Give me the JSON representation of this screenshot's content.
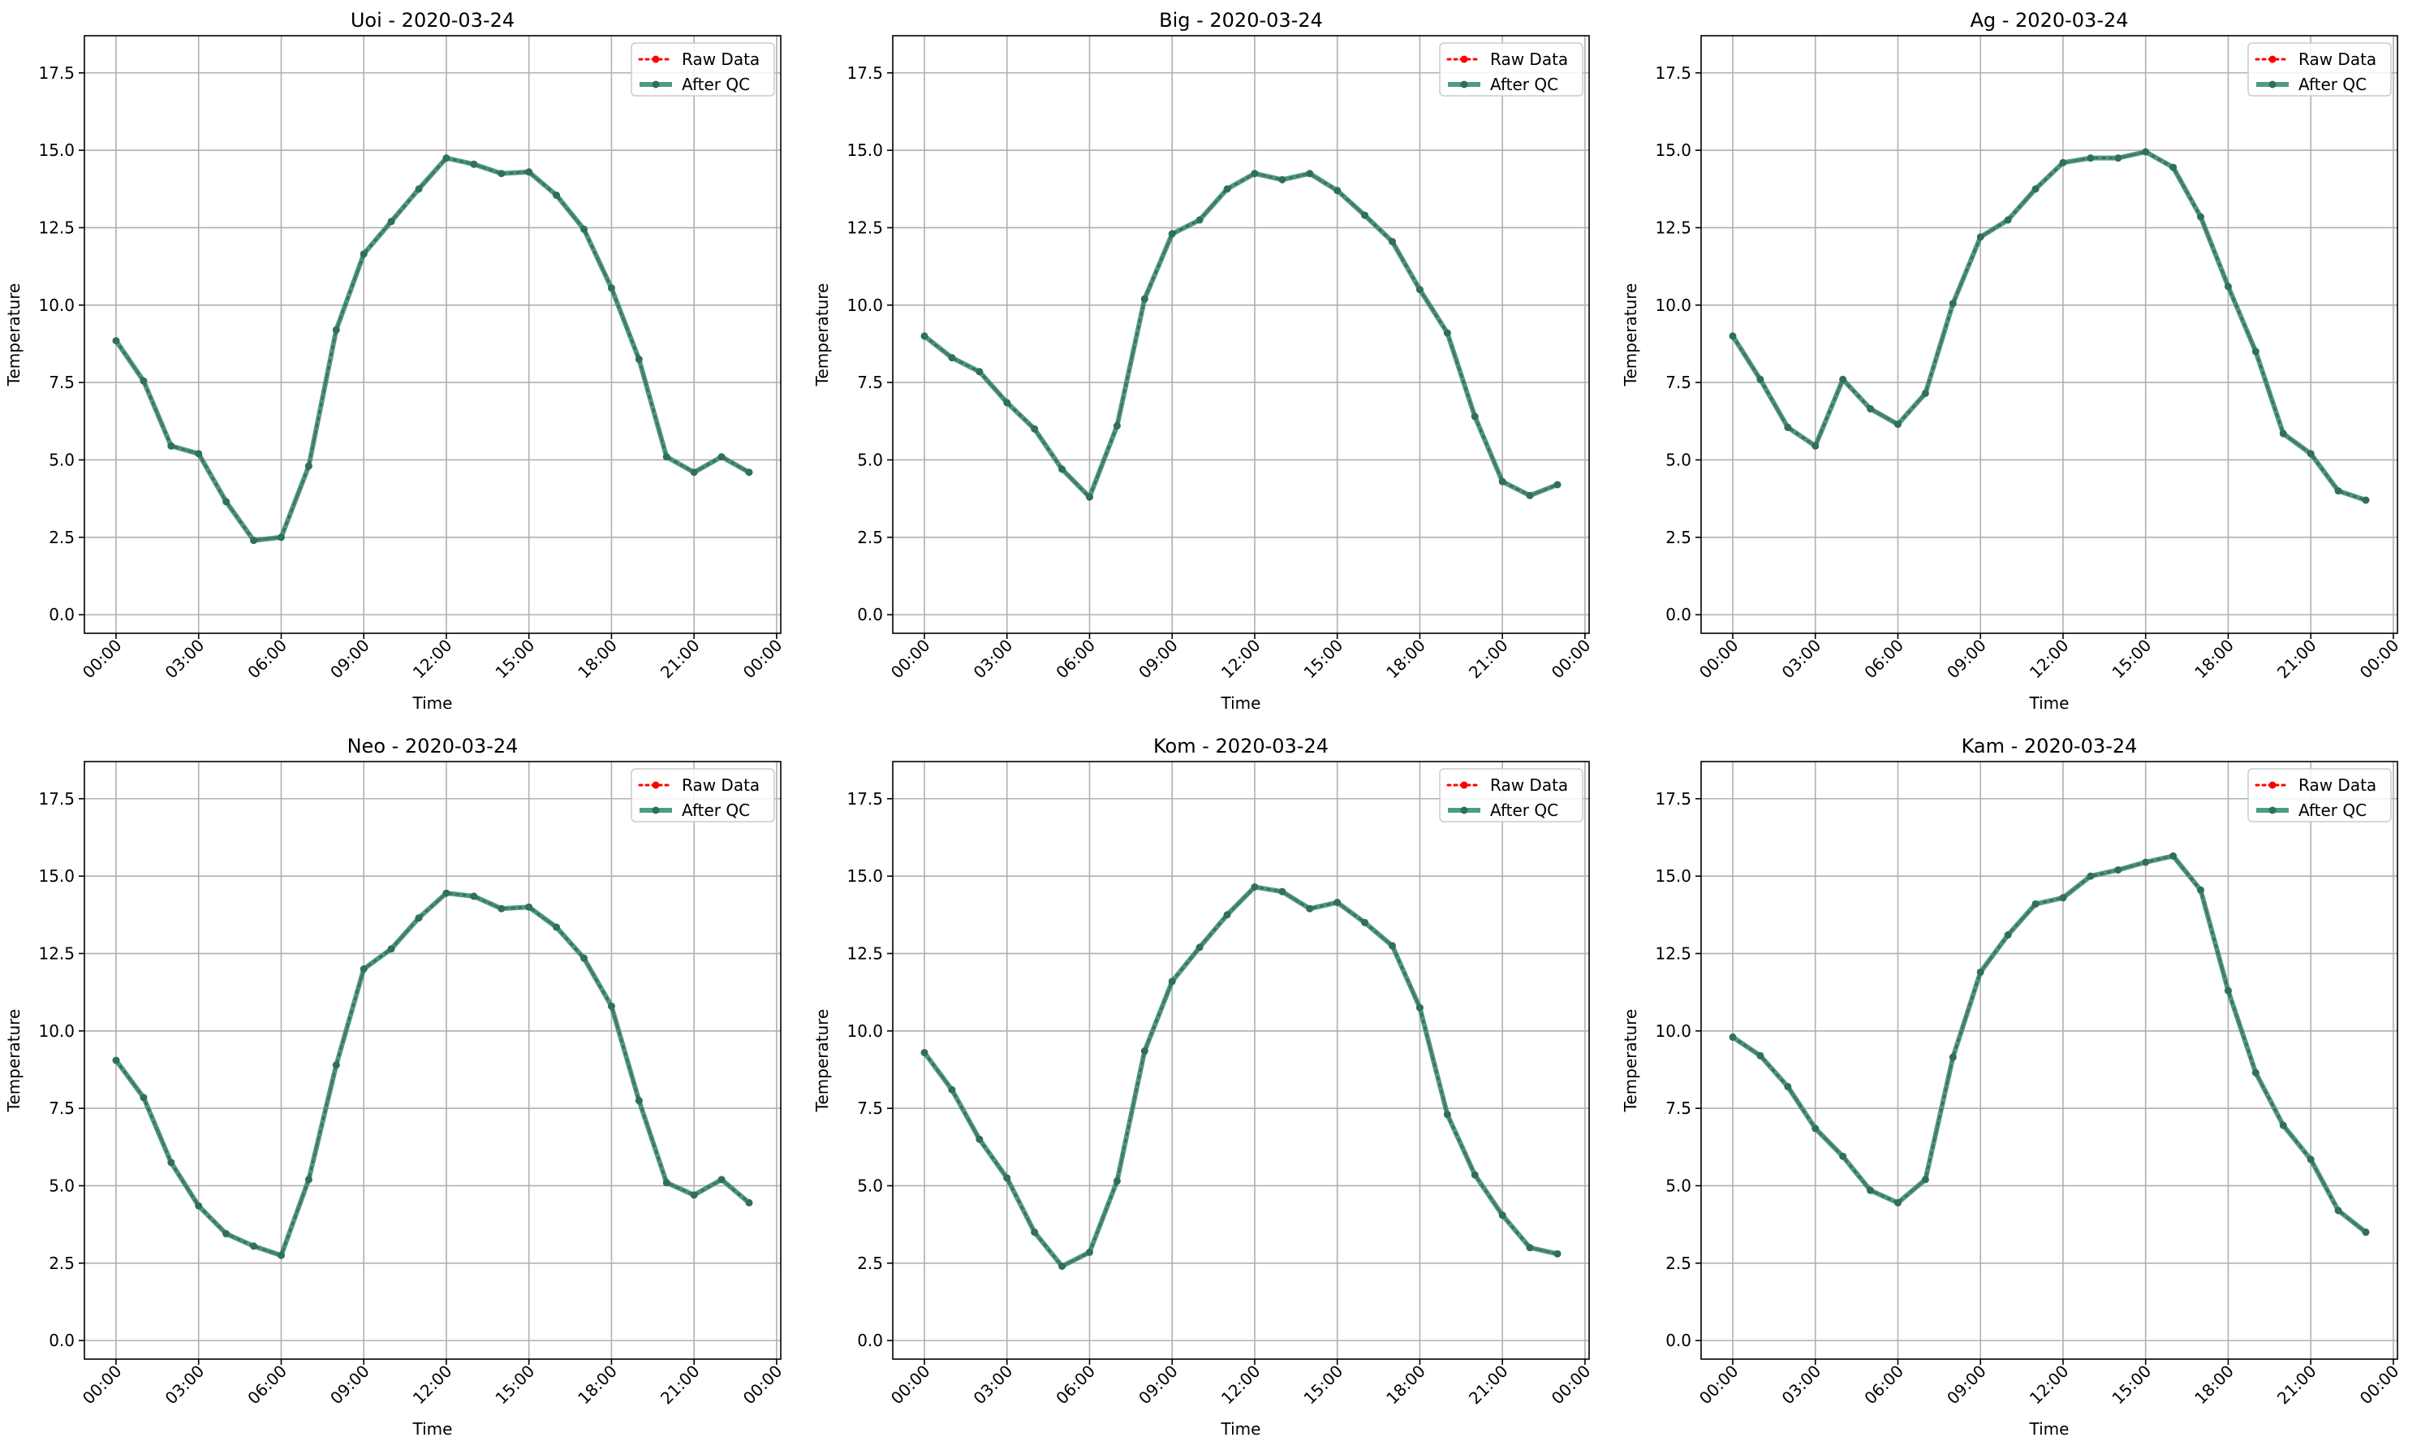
{
  "chart_data": [
    {
      "type": "line",
      "title": "Uoi - 2020-03-24",
      "xlabel": "Time",
      "ylabel": "Temperature",
      "x_ticks": [
        "00:00",
        "03:00",
        "06:00",
        "09:00",
        "12:00",
        "15:00",
        "18:00",
        "21:00",
        "00:00"
      ],
      "y_ticks": [
        "0.0",
        "2.5",
        "5.0",
        "7.5",
        "10.0",
        "12.5",
        "15.0",
        "17.5"
      ],
      "ylim": [
        -0.6,
        18.7
      ],
      "grid": true,
      "legend_position": "top-right",
      "x_hours": [
        0,
        1,
        2,
        3,
        4,
        5,
        6,
        7,
        8,
        9,
        10,
        11,
        12,
        13,
        14,
        15,
        16,
        17,
        18,
        19,
        20,
        21,
        22,
        23
      ],
      "series": [
        {
          "name": "Raw Data",
          "values": [
            8.85,
            7.55,
            5.45,
            5.2,
            3.65,
            2.4,
            2.5,
            4.8,
            9.2,
            11.65,
            12.7,
            13.75,
            14.75,
            14.55,
            14.25,
            14.3,
            13.55,
            12.45,
            10.55,
            8.25,
            5.1,
            4.6,
            5.1,
            4.6
          ]
        },
        {
          "name": "After QC",
          "values": [
            8.85,
            7.55,
            5.45,
            5.2,
            3.65,
            2.4,
            2.5,
            4.8,
            9.2,
            11.65,
            12.7,
            13.75,
            14.75,
            14.55,
            14.25,
            14.3,
            13.55,
            12.45,
            10.55,
            8.25,
            5.1,
            4.6,
            5.1,
            4.6
          ]
        }
      ]
    },
    {
      "type": "line",
      "title": "Big - 2020-03-24",
      "xlabel": "Time",
      "ylabel": "Temperature",
      "x_ticks": [
        "00:00",
        "03:00",
        "06:00",
        "09:00",
        "12:00",
        "15:00",
        "18:00",
        "21:00",
        "00:00"
      ],
      "y_ticks": [
        "0.0",
        "2.5",
        "5.0",
        "7.5",
        "10.0",
        "12.5",
        "15.0",
        "17.5"
      ],
      "ylim": [
        -0.6,
        18.7
      ],
      "grid": true,
      "legend_position": "top-right",
      "x_hours": [
        0,
        1,
        2,
        3,
        4,
        5,
        6,
        7,
        8,
        9,
        10,
        11,
        12,
        13,
        14,
        15,
        16,
        17,
        18,
        19,
        20,
        21,
        22,
        23
      ],
      "series": [
        {
          "name": "Raw Data",
          "values": [
            9.0,
            8.3,
            7.85,
            6.85,
            6.0,
            4.7,
            3.8,
            6.1,
            10.2,
            12.3,
            12.75,
            13.75,
            14.25,
            14.05,
            14.25,
            13.7,
            12.9,
            12.05,
            10.5,
            9.1,
            6.4,
            4.3,
            3.85,
            4.2
          ]
        },
        {
          "name": "After QC",
          "values": [
            9.0,
            8.3,
            7.85,
            6.85,
            6.0,
            4.7,
            3.8,
            6.1,
            10.2,
            12.3,
            12.75,
            13.75,
            14.25,
            14.05,
            14.25,
            13.7,
            12.9,
            12.05,
            10.5,
            9.1,
            6.4,
            4.3,
            3.85,
            4.2
          ]
        }
      ]
    },
    {
      "type": "line",
      "title": "Ag - 2020-03-24",
      "xlabel": "Time",
      "ylabel": "Temperature",
      "x_ticks": [
        "00:00",
        "03:00",
        "06:00",
        "09:00",
        "12:00",
        "15:00",
        "18:00",
        "21:00",
        "00:00"
      ],
      "y_ticks": [
        "0.0",
        "2.5",
        "5.0",
        "7.5",
        "10.0",
        "12.5",
        "15.0",
        "17.5"
      ],
      "ylim": [
        -0.6,
        18.7
      ],
      "grid": true,
      "legend_position": "top-right",
      "x_hours": [
        0,
        1,
        2,
        3,
        4,
        5,
        6,
        7,
        8,
        9,
        10,
        11,
        12,
        13,
        14,
        15,
        16,
        17,
        18,
        19,
        20,
        21,
        22,
        23
      ],
      "series": [
        {
          "name": "Raw Data",
          "values": [
            9.0,
            7.6,
            6.05,
            5.45,
            7.6,
            6.65,
            6.15,
            7.15,
            10.05,
            12.2,
            12.75,
            13.75,
            14.6,
            14.75,
            14.75,
            14.95,
            14.45,
            12.85,
            10.6,
            8.5,
            5.85,
            5.2,
            4.0,
            3.7
          ]
        },
        {
          "name": "After QC",
          "values": [
            9.0,
            7.6,
            6.05,
            5.45,
            7.6,
            6.65,
            6.15,
            7.15,
            10.05,
            12.2,
            12.75,
            13.75,
            14.6,
            14.75,
            14.75,
            14.95,
            14.45,
            12.85,
            10.6,
            8.5,
            5.85,
            5.2,
            4.0,
            3.7
          ]
        }
      ]
    },
    {
      "type": "line",
      "title": "Neo - 2020-03-24",
      "xlabel": "Time",
      "ylabel": "Temperature",
      "x_ticks": [
        "00:00",
        "03:00",
        "06:00",
        "09:00",
        "12:00",
        "15:00",
        "18:00",
        "21:00",
        "00:00"
      ],
      "y_ticks": [
        "0.0",
        "2.5",
        "5.0",
        "7.5",
        "10.0",
        "12.5",
        "15.0",
        "17.5"
      ],
      "ylim": [
        -0.6,
        18.7
      ],
      "grid": true,
      "legend_position": "top-right",
      "x_hours": [
        0,
        1,
        2,
        3,
        4,
        5,
        6,
        7,
        8,
        9,
        10,
        11,
        12,
        13,
        14,
        15,
        16,
        17,
        18,
        19,
        20,
        21,
        22,
        23
      ],
      "series": [
        {
          "name": "Raw Data",
          "values": [
            9.05,
            7.85,
            5.75,
            4.35,
            3.45,
            3.05,
            2.75,
            5.2,
            8.9,
            12.0,
            12.65,
            13.65,
            14.45,
            14.35,
            13.95,
            14.0,
            13.35,
            12.35,
            10.8,
            7.75,
            5.1,
            4.7,
            5.2,
            4.45
          ]
        },
        {
          "name": "After QC",
          "values": [
            9.05,
            7.85,
            5.75,
            4.35,
            3.45,
            3.05,
            2.75,
            5.2,
            8.9,
            12.0,
            12.65,
            13.65,
            14.45,
            14.35,
            13.95,
            14.0,
            13.35,
            12.35,
            10.8,
            7.75,
            5.1,
            4.7,
            5.2,
            4.45
          ]
        }
      ]
    },
    {
      "type": "line",
      "title": "Kom - 2020-03-24",
      "xlabel": "Time",
      "ylabel": "Temperature",
      "x_ticks": [
        "00:00",
        "03:00",
        "06:00",
        "09:00",
        "12:00",
        "15:00",
        "18:00",
        "21:00",
        "00:00"
      ],
      "y_ticks": [
        "0.0",
        "2.5",
        "5.0",
        "7.5",
        "10.0",
        "12.5",
        "15.0",
        "17.5"
      ],
      "ylim": [
        -0.6,
        18.7
      ],
      "grid": true,
      "legend_position": "top-right",
      "x_hours": [
        0,
        1,
        2,
        3,
        4,
        5,
        6,
        7,
        8,
        9,
        10,
        11,
        12,
        13,
        14,
        15,
        16,
        17,
        18,
        19,
        20,
        21,
        22,
        23
      ],
      "series": [
        {
          "name": "Raw Data",
          "values": [
            9.3,
            8.1,
            6.5,
            5.25,
            3.5,
            2.4,
            2.85,
            5.15,
            9.35,
            11.6,
            12.7,
            13.75,
            14.65,
            14.5,
            13.95,
            14.15,
            13.5,
            12.75,
            10.75,
            7.3,
            5.35,
            4.05,
            3.0,
            2.8
          ]
        },
        {
          "name": "After QC",
          "values": [
            9.3,
            8.1,
            6.5,
            5.25,
            3.5,
            2.4,
            2.85,
            5.15,
            9.35,
            11.6,
            12.7,
            13.75,
            14.65,
            14.5,
            13.95,
            14.15,
            13.5,
            12.75,
            10.75,
            7.3,
            5.35,
            4.05,
            3.0,
            2.8
          ]
        }
      ]
    },
    {
      "type": "line",
      "title": "Kam - 2020-03-24",
      "xlabel": "Time",
      "ylabel": "Temperature",
      "x_ticks": [
        "00:00",
        "03:00",
        "06:00",
        "09:00",
        "12:00",
        "15:00",
        "18:00",
        "21:00",
        "00:00"
      ],
      "y_ticks": [
        "0.0",
        "2.5",
        "5.0",
        "7.5",
        "10.0",
        "12.5",
        "15.0",
        "17.5"
      ],
      "ylim": [
        -0.6,
        18.7
      ],
      "grid": true,
      "legend_position": "top-right",
      "x_hours": [
        0,
        1,
        2,
        3,
        4,
        5,
        6,
        7,
        8,
        9,
        10,
        11,
        12,
        13,
        14,
        15,
        16,
        17,
        18,
        19,
        20,
        21,
        22,
        23
      ],
      "series": [
        {
          "name": "Raw Data",
          "values": [
            9.8,
            9.2,
            8.2,
            6.85,
            5.95,
            4.85,
            4.45,
            5.2,
            9.15,
            11.9,
            13.1,
            14.1,
            14.3,
            15.0,
            15.2,
            15.45,
            15.65,
            14.55,
            11.3,
            8.65,
            6.95,
            5.85,
            4.2,
            3.5
          ]
        },
        {
          "name": "After QC",
          "values": [
            9.8,
            9.2,
            8.2,
            6.85,
            5.95,
            4.85,
            4.45,
            5.2,
            9.15,
            11.9,
            13.1,
            14.1,
            14.3,
            15.0,
            15.2,
            15.45,
            15.65,
            14.55,
            11.3,
            8.65,
            6.95,
            5.85,
            4.2,
            3.5
          ]
        }
      ]
    }
  ],
  "colors": {
    "raw": "#ff0000",
    "qc": "#2e8b6e",
    "grid": "#b0b0b0",
    "axis": "#000000",
    "legend_border": "#cccccc"
  }
}
